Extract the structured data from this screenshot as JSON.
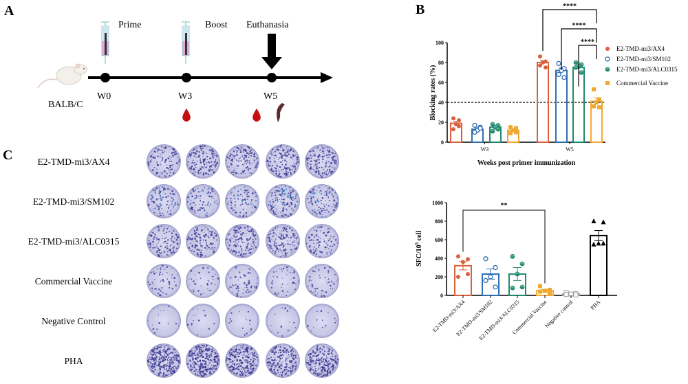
{
  "panels": {
    "a": "A",
    "b": "B",
    "c": "C"
  },
  "timeline": {
    "animal": "BALB/C",
    "weeks": [
      "W0",
      "W3",
      "W5"
    ],
    "events": [
      "Prime",
      "Boost",
      "Euthanasia"
    ],
    "icons": [
      "mouse-icon",
      "syringe-icon",
      "syringe-icon",
      "down-arrow-icon",
      "blood-drop-icon",
      "blood-drop-icon",
      "spleen-icon"
    ]
  },
  "colors": {
    "AX4": "#d9603b",
    "SM102": "#2f6fb5",
    "ALC0315": "#1f8a6e",
    "Commercial": "#f0a830",
    "Negative": "#a0a0a0",
    "PHA": "#000000"
  },
  "chart_data": [
    {
      "type": "bar",
      "title": "",
      "xlabel": "Weeks post primer immunization",
      "ylabel": "Blocking rates (%)",
      "ylim": [
        0,
        100
      ],
      "yticks": [
        0,
        20,
        40,
        60,
        80,
        100
      ],
      "categories": [
        "W3",
        "W5"
      ],
      "reference_line": 40,
      "legend_position": "right",
      "series": [
        {
          "name": "E2-TMD-mi3/AX4",
          "marker": "filled-circle",
          "color": "#d9603b",
          "values": [
            19,
            80
          ],
          "sem": [
            2,
            2
          ],
          "points": [
            [
              24,
              22,
              18,
              13,
              16
            ],
            [
              86,
              81,
              80,
              77,
              75
            ]
          ]
        },
        {
          "name": "E2-TMD-mi3/SM102",
          "marker": "open-circle",
          "color": "#2f6fb5",
          "values": [
            13,
            72
          ],
          "sem": [
            1.5,
            2.5
          ],
          "points": [
            [
              17,
              15,
              12,
              10,
              14
            ],
            [
              79,
              74,
              72,
              68,
              65
            ]
          ]
        },
        {
          "name": "E2-TMD-mi3/ALC0315",
          "marker": "half-circle",
          "color": "#1f8a6e",
          "values": [
            15,
            75
          ],
          "sem": [
            1.5,
            2
          ],
          "points": [
            [
              18,
              17,
              15,
              11,
              13
            ],
            [
              80,
              78,
              76,
              75,
              70
            ]
          ]
        },
        {
          "name": "Commercial Vaccine",
          "marker": "square",
          "color": "#f0a830",
          "values": [
            12,
            41
          ],
          "sem": [
            1.5,
            3.5
          ],
          "points": [
            [
              15,
              14,
              12,
              9,
              10
            ],
            [
              53,
              43,
              40,
              36,
              35
            ]
          ]
        }
      ],
      "significance": [
        {
          "from": "E2-TMD-mi3/AX4",
          "to": "Commercial Vaccine",
          "label": "****"
        },
        {
          "from": "E2-TMD-mi3/SM102",
          "to": "Commercial Vaccine",
          "label": "****"
        },
        {
          "from": "E2-TMD-mi3/ALC0315",
          "to": "Commercial Vaccine",
          "label": "****"
        }
      ]
    },
    {
      "type": "bar",
      "title": "",
      "xlabel": "",
      "ylabel": {
        "base": "SFC/10",
        "sup": "5",
        "unit": " cell"
      },
      "ylim": [
        0,
        1000
      ],
      "yticks": [
        0,
        200,
        400,
        600,
        800,
        1000
      ],
      "categories": [
        "E2-TMD-mi3/AX4",
        "E2-TMD-mi3/SM102",
        "E2-TMD-mi3/ALC0315",
        "Commercial Vaccine",
        "Negative control",
        "PHA"
      ],
      "values": [
        320,
        230,
        230,
        50,
        15,
        645
      ],
      "sem": [
        45,
        55,
        70,
        15,
        5,
        55
      ],
      "markers": [
        "filled-circle",
        "open-circle",
        "half-circle",
        "square",
        "open-square",
        "triangle"
      ],
      "colors": [
        "#d9603b",
        "#2f6fb5",
        "#1f8a6e",
        "#f0a830",
        "#a0a0a0",
        "#000000"
      ],
      "points": [
        [
          420,
          390,
          360,
          200,
          230
        ],
        [
          395,
          300,
          200,
          160,
          90
        ],
        [
          420,
          340,
          230,
          80,
          90
        ],
        [
          100,
          60,
          50,
          40,
          30
        ],
        [
          30,
          20,
          15,
          10,
          5
        ],
        [
          800,
          790,
          560,
          550,
          560
        ]
      ],
      "significance": [
        {
          "from": "E2-TMD-mi3/AX4",
          "to": "Commercial Vaccine",
          "label": "**"
        }
      ]
    }
  ],
  "elispot": {
    "rows": [
      "E2-TMD-mi3/AX4",
      "E2-TMD-mi3/SM102",
      "E2-TMD-mi3/ALC0315",
      "Commercial Vaccine",
      "Negative Control",
      "PHA"
    ],
    "wells_per_row": 5
  }
}
